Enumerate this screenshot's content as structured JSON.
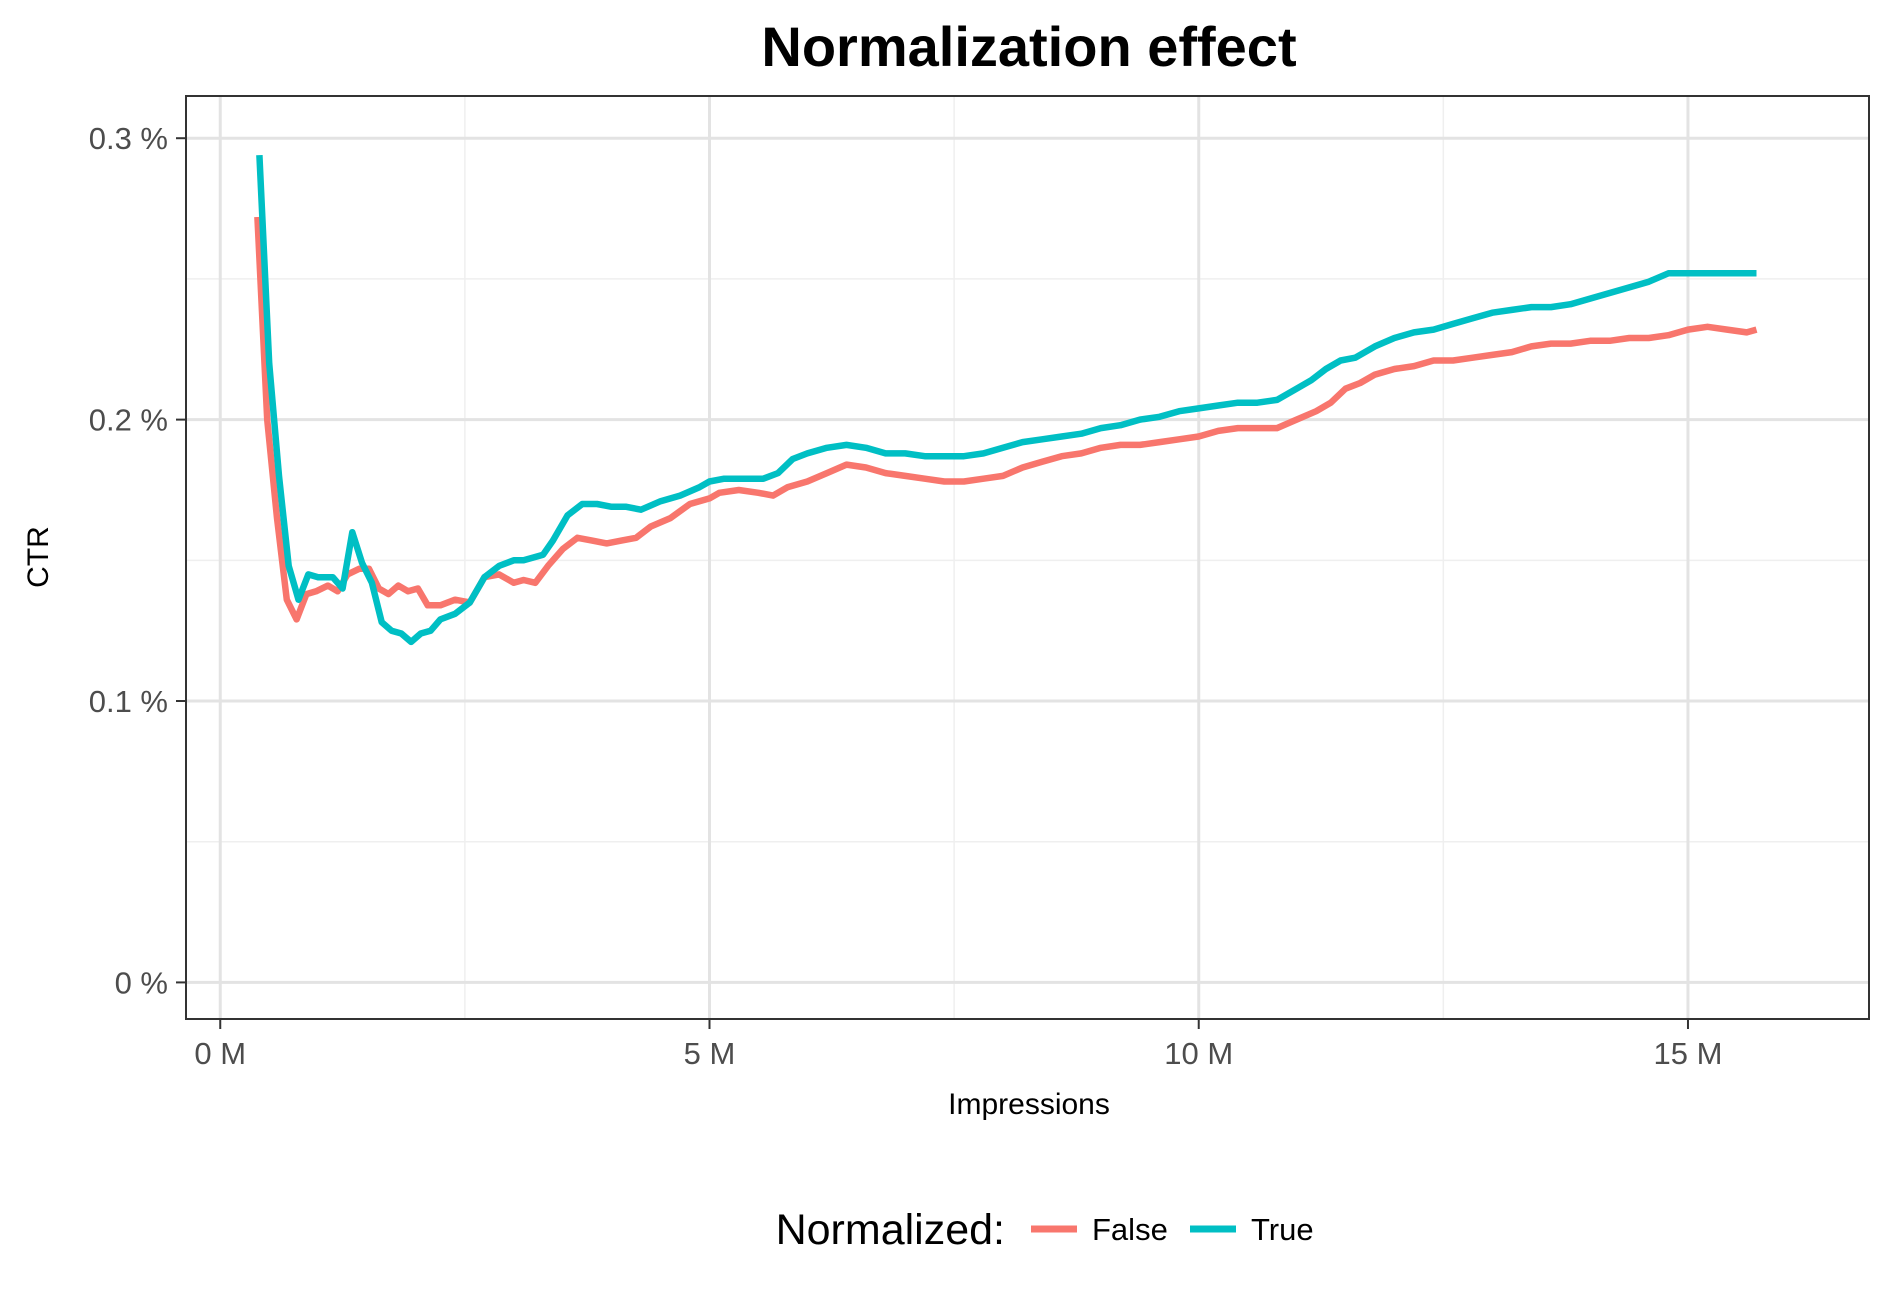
{
  "chart_data": {
    "type": "line",
    "title": "Normalization effect",
    "xlabel": "Impressions",
    "ylabel": "CTR",
    "xlim": [
      -0.35,
      16.85
    ],
    "ylim": [
      -0.013,
      0.315
    ],
    "x_ticks": [
      {
        "value": 0,
        "label": "0 M"
      },
      {
        "value": 5,
        "label": "5 M"
      },
      {
        "value": 10,
        "label": "10 M"
      },
      {
        "value": 15,
        "label": "15 M"
      }
    ],
    "x_minor_ticks": [
      2.5,
      7.5,
      12.5
    ],
    "y_ticks": [
      {
        "value": 0,
        "label": "0 %"
      },
      {
        "value": 0.1,
        "label": "0.1 %"
      },
      {
        "value": 0.2,
        "label": "0.2 %"
      },
      {
        "value": 0.3,
        "label": "0.3 %"
      }
    ],
    "y_minor_ticks": [
      0.05,
      0.15,
      0.25
    ],
    "grid": true,
    "x_unit": "M",
    "y_unit": "%",
    "legend": {
      "title": "Normalized:",
      "position": "bottom"
    },
    "series": [
      {
        "name": "False",
        "color": "#F8766D",
        "x": [
          0.38,
          0.48,
          0.58,
          0.68,
          0.78,
          0.88,
          0.98,
          1.1,
          1.2,
          1.3,
          1.42,
          1.52,
          1.62,
          1.72,
          1.82,
          1.92,
          2.02,
          2.12,
          2.25,
          2.4,
          2.55,
          2.7,
          2.85,
          3.0,
          3.1,
          3.22,
          3.35,
          3.5,
          3.65,
          3.8,
          3.95,
          4.1,
          4.25,
          4.4,
          4.6,
          4.8,
          5.0,
          5.1,
          5.3,
          5.5,
          5.65,
          5.8,
          6.0,
          6.2,
          6.4,
          6.6,
          6.8,
          7.0,
          7.2,
          7.4,
          7.6,
          7.8,
          8.0,
          8.2,
          8.4,
          8.6,
          8.8,
          9.0,
          9.2,
          9.4,
          9.6,
          9.8,
          10.0,
          10.2,
          10.4,
          10.6,
          10.8,
          11.0,
          11.2,
          11.35,
          11.5,
          11.65,
          11.8,
          12.0,
          12.2,
          12.4,
          12.6,
          12.8,
          13.0,
          13.2,
          13.4,
          13.6,
          13.8,
          14.0,
          14.2,
          14.4,
          14.6,
          14.8,
          15.0,
          15.2,
          15.4,
          15.6,
          15.7
        ],
        "values": [
          0.272,
          0.2,
          0.165,
          0.136,
          0.129,
          0.138,
          0.139,
          0.141,
          0.139,
          0.145,
          0.147,
          0.147,
          0.14,
          0.138,
          0.141,
          0.139,
          0.14,
          0.134,
          0.134,
          0.136,
          0.135,
          0.144,
          0.145,
          0.142,
          0.143,
          0.142,
          0.148,
          0.154,
          0.158,
          0.157,
          0.156,
          0.157,
          0.158,
          0.162,
          0.165,
          0.17,
          0.172,
          0.174,
          0.175,
          0.174,
          0.173,
          0.176,
          0.178,
          0.181,
          0.184,
          0.183,
          0.181,
          0.18,
          0.179,
          0.178,
          0.178,
          0.179,
          0.18,
          0.183,
          0.185,
          0.187,
          0.188,
          0.19,
          0.191,
          0.191,
          0.192,
          0.193,
          0.194,
          0.196,
          0.197,
          0.197,
          0.197,
          0.2,
          0.203,
          0.206,
          0.211,
          0.213,
          0.216,
          0.218,
          0.219,
          0.221,
          0.221,
          0.222,
          0.223,
          0.224,
          0.226,
          0.227,
          0.227,
          0.228,
          0.228,
          0.229,
          0.229,
          0.23,
          0.232,
          0.233,
          0.232,
          0.231,
          0.232
        ]
      },
      {
        "name": "True",
        "color": "#00BFC4",
        "x": [
          0.4,
          0.5,
          0.6,
          0.7,
          0.8,
          0.9,
          1.0,
          1.15,
          1.25,
          1.35,
          1.45,
          1.55,
          1.65,
          1.75,
          1.85,
          1.95,
          2.05,
          2.15,
          2.25,
          2.4,
          2.55,
          2.7,
          2.85,
          3.0,
          3.1,
          3.2,
          3.3,
          3.4,
          3.55,
          3.7,
          3.85,
          4.0,
          4.15,
          4.3,
          4.5,
          4.7,
          4.9,
          5.0,
          5.15,
          5.35,
          5.55,
          5.7,
          5.85,
          6.0,
          6.2,
          6.4,
          6.6,
          6.8,
          7.0,
          7.2,
          7.4,
          7.6,
          7.8,
          8.0,
          8.2,
          8.4,
          8.6,
          8.8,
          9.0,
          9.2,
          9.4,
          9.6,
          9.8,
          10.0,
          10.2,
          10.4,
          10.6,
          10.8,
          11.0,
          11.15,
          11.3,
          11.45,
          11.6,
          11.8,
          12.0,
          12.2,
          12.4,
          12.6,
          12.8,
          13.0,
          13.2,
          13.4,
          13.6,
          13.8,
          14.0,
          14.2,
          14.4,
          14.6,
          14.8,
          15.0,
          15.2,
          15.4,
          15.6,
          15.7
        ],
        "values": [
          0.294,
          0.22,
          0.18,
          0.148,
          0.136,
          0.145,
          0.144,
          0.144,
          0.14,
          0.16,
          0.149,
          0.142,
          0.128,
          0.125,
          0.124,
          0.121,
          0.124,
          0.125,
          0.129,
          0.131,
          0.135,
          0.144,
          0.148,
          0.15,
          0.15,
          0.151,
          0.152,
          0.157,
          0.166,
          0.17,
          0.17,
          0.169,
          0.169,
          0.168,
          0.171,
          0.173,
          0.176,
          0.178,
          0.179,
          0.179,
          0.179,
          0.181,
          0.186,
          0.188,
          0.19,
          0.191,
          0.19,
          0.188,
          0.188,
          0.187,
          0.187,
          0.187,
          0.188,
          0.19,
          0.192,
          0.193,
          0.194,
          0.195,
          0.197,
          0.198,
          0.2,
          0.201,
          0.203,
          0.204,
          0.205,
          0.206,
          0.206,
          0.207,
          0.211,
          0.214,
          0.218,
          0.221,
          0.222,
          0.226,
          0.229,
          0.231,
          0.232,
          0.234,
          0.236,
          0.238,
          0.239,
          0.24,
          0.24,
          0.241,
          0.243,
          0.245,
          0.247,
          0.249,
          0.252,
          0.252,
          0.252,
          0.252,
          0.252,
          0.252
        ]
      }
    ]
  }
}
